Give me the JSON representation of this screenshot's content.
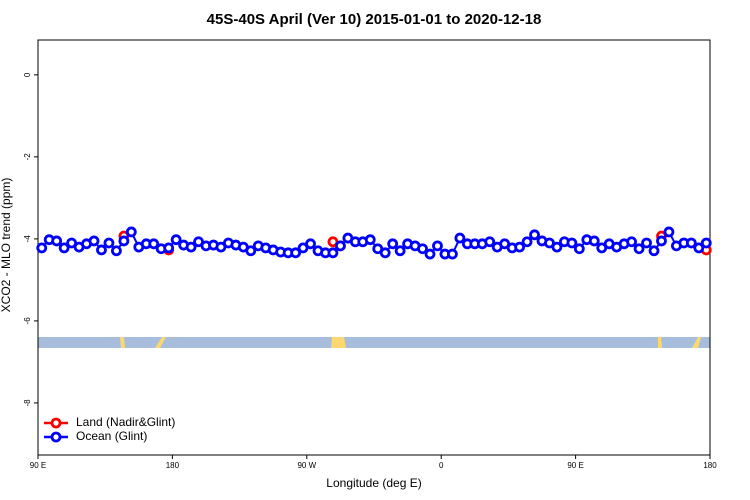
{
  "chart_data": {
    "type": "line",
    "title": "45S-40S April (Ver 10)   2015-01-01 to 2020-12-18",
    "xlabel": "Longitude (deg E)",
    "ylabel": "XCO2 - MLO trend (ppm)",
    "xlim": [
      90,
      540
    ],
    "xticks": [
      {
        "value": 90,
        "label": "90 E"
      },
      180,
      {
        "value": 270,
        "label": "90 W"
      },
      {
        "value": 360,
        "label": "0"
      },
      {
        "value": 450,
        "label": "90 E"
      },
      {
        "value": 540,
        "label": "180"
      }
    ],
    "ylim": [
      -9.27,
      0.85
    ],
    "yticks": [
      0,
      -2,
      -4,
      -6,
      -8
    ],
    "legend": "bottomleft",
    "series": [
      {
        "name": "Land (Nadir&Glint)",
        "color": "#ff0000",
        "connected": false,
        "x": [
          147.5,
          177.5,
          287.5,
          292.5,
          507.5,
          537.5
        ],
        "values": [
          -3.93,
          -4.27,
          -4.07,
          -4.17,
          -3.93,
          -4.27
        ]
      },
      {
        "name": "Ocean (Glint)",
        "color": "#0000ff",
        "connected": true,
        "x": [
          92.5,
          97.5,
          102.5,
          107.5,
          112.5,
          117.5,
          122.5,
          127.5,
          132.5,
          137.5,
          142.5,
          147.5,
          152.5,
          157.5,
          162.5,
          167.5,
          172.5,
          177.5,
          182.5,
          187.5,
          192.5,
          197.5,
          202.5,
          207.5,
          212.5,
          217.5,
          222.5,
          227.5,
          232.5,
          237.5,
          242.5,
          247.5,
          252.5,
          257.5,
          262.5,
          267.5,
          272.5,
          277.5,
          282.5,
          287.5,
          292.5,
          297.5,
          302.5,
          307.5,
          312.5,
          317.5,
          322.5,
          327.5,
          332.5,
          337.5,
          342.5,
          347.5,
          352.5,
          357.5,
          362.5,
          367.5,
          372.5,
          377.5,
          382.5,
          387.5,
          392.5,
          397.5,
          402.5,
          407.5,
          412.5,
          417.5,
          422.5,
          427.5,
          432.5,
          437.5,
          442.5,
          447.5,
          452.5,
          457.5,
          462.5,
          467.5,
          472.5,
          477.5,
          482.5,
          487.5,
          492.5,
          497.5,
          502.5,
          507.5,
          512.5,
          517.5,
          522.5,
          527.5,
          532.5,
          537.5
        ],
        "values": [
          -4.22,
          -4.02,
          -4.05,
          -4.22,
          -4.1,
          -4.2,
          -4.12,
          -4.05,
          -4.27,
          -4.1,
          -4.29,
          -4.05,
          -3.83,
          -4.2,
          -4.12,
          -4.12,
          -4.24,
          -4.22,
          -4.02,
          -4.15,
          -4.2,
          -4.07,
          -4.17,
          -4.15,
          -4.2,
          -4.1,
          -4.15,
          -4.2,
          -4.29,
          -4.17,
          -4.22,
          -4.27,
          -4.32,
          -4.34,
          -4.34,
          -4.22,
          -4.12,
          -4.29,
          -4.34,
          -4.34,
          -4.17,
          -3.98,
          -4.07,
          -4.07,
          -4.02,
          -4.24,
          -4.34,
          -4.12,
          -4.29,
          -4.12,
          -4.17,
          -4.24,
          -4.37,
          -4.17,
          -4.37,
          -4.37,
          -3.98,
          -4.12,
          -4.12,
          -4.12,
          -4.07,
          -4.2,
          -4.12,
          -4.22,
          -4.2,
          -4.07,
          -3.9,
          -4.05,
          -4.1,
          -4.2,
          -4.07,
          -4.1,
          -4.24,
          -4.02,
          -4.05,
          -4.22,
          -4.12,
          -4.2,
          -4.12,
          -4.07,
          -4.24,
          -4.1,
          -4.29,
          -4.05,
          -3.83,
          -4.17,
          -4.1,
          -4.1,
          -4.22,
          -4.1
        ]
      }
    ]
  }
}
